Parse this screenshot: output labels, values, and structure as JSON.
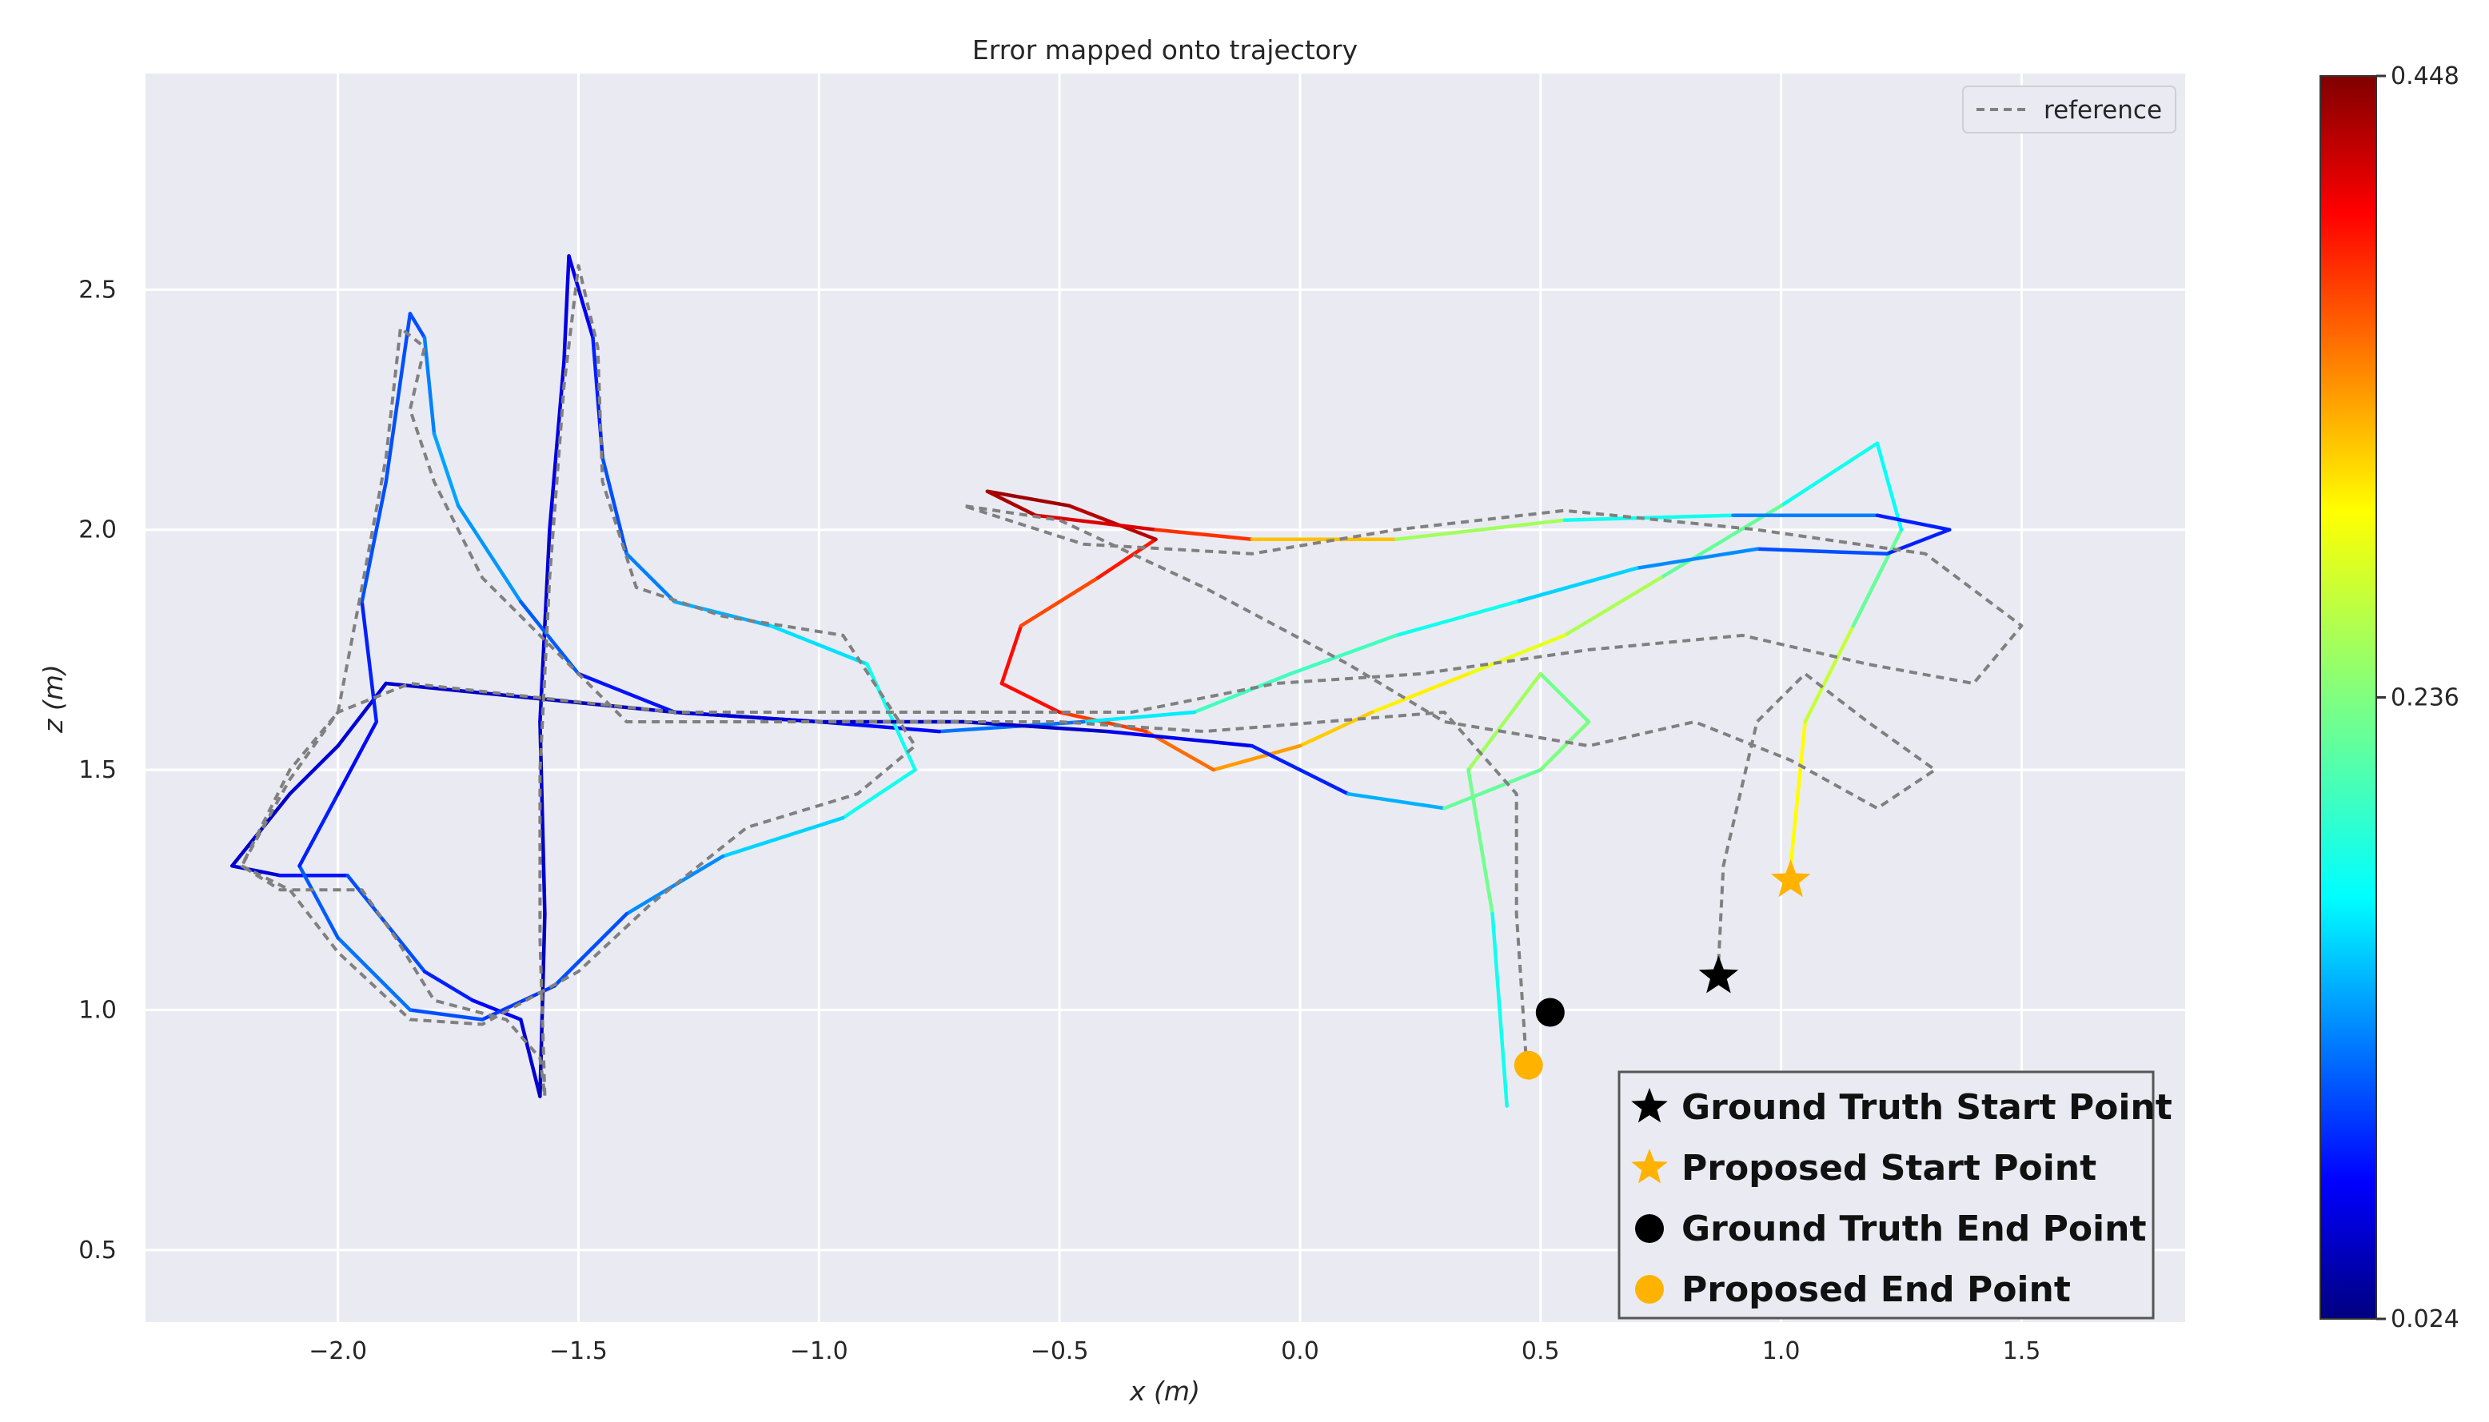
{
  "chart_data": {
    "type": "line",
    "title": "Error mapped onto trajectory",
    "xlabel": "x (m)",
    "ylabel": "z (m)",
    "xlim": [
      -2.4,
      1.84
    ],
    "ylim": [
      0.35,
      2.95
    ],
    "xticks": [
      -2.0,
      -1.5,
      -1.0,
      -0.5,
      0.0,
      0.5,
      1.0,
      1.5
    ],
    "xtick_labels": [
      "−2.0",
      "−1.5",
      "−1.0",
      "−0.5",
      "0.0",
      "0.5",
      "1.0",
      "1.5"
    ],
    "yticks": [
      0.5,
      1.0,
      1.5,
      2.0,
      2.5
    ],
    "ytick_labels": [
      "0.5",
      "1.0",
      "1.5",
      "2.0",
      "2.5"
    ],
    "grid": true,
    "colorbar": {
      "colormap": "jet",
      "min": 0.024,
      "max": 0.448,
      "ticks": [
        0.024,
        0.236,
        0.448
      ],
      "tick_labels": [
        "0.024",
        "0.236",
        "0.448"
      ]
    },
    "legend_reference": {
      "label": "reference",
      "placement": "top-right",
      "style": "dashed",
      "color": "#808080"
    },
    "legend_points": {
      "placement": "bottom-right",
      "entries": [
        {
          "label": "Ground Truth Start Point",
          "marker": "star",
          "color": "#000000"
        },
        {
          "label": "Proposed Start Point",
          "marker": "star",
          "color": "#FFB300"
        },
        {
          "label": "Ground Truth End Point",
          "marker": "circle",
          "color": "#000000"
        },
        {
          "label": "Proposed End Point",
          "marker": "circle",
          "color": "#FFB300"
        }
      ]
    },
    "markers": [
      {
        "name": "gt-start-marker",
        "shape": "star",
        "x": 0.87,
        "y": 1.07,
        "color": "#000000"
      },
      {
        "name": "proposed-start-marker",
        "shape": "star",
        "x": 1.02,
        "y": 1.27,
        "color": "#FFB300"
      },
      {
        "name": "gt-end-marker",
        "shape": "circle",
        "x": 0.52,
        "y": 0.995,
        "color": "#000000"
      },
      {
        "name": "proposed-end-marker",
        "shape": "circle",
        "x": 0.475,
        "y": 0.885,
        "color": "#FFB300"
      }
    ],
    "series": [
      {
        "name": "reference",
        "style": "dashed",
        "color": "#808080",
        "points": [
          [
            0.87,
            1.1
          ],
          [
            0.88,
            1.3
          ],
          [
            0.95,
            1.6
          ],
          [
            1.05,
            1.7
          ],
          [
            1.18,
            1.6
          ],
          [
            1.32,
            1.5
          ],
          [
            1.2,
            1.42
          ],
          [
            1.02,
            1.52
          ],
          [
            0.82,
            1.6
          ],
          [
            0.6,
            1.55
          ],
          [
            0.3,
            1.6
          ],
          [
            0.1,
            1.72
          ],
          [
            -0.2,
            1.88
          ],
          [
            -0.5,
            2.02
          ],
          [
            -0.7,
            2.05
          ],
          [
            -0.45,
            1.97
          ],
          [
            -0.1,
            1.95
          ],
          [
            0.2,
            2.0
          ],
          [
            0.55,
            2.04
          ],
          [
            0.95,
            2.0
          ],
          [
            1.3,
            1.95
          ],
          [
            1.5,
            1.8
          ],
          [
            1.4,
            1.68
          ],
          [
            1.18,
            1.72
          ],
          [
            0.92,
            1.78
          ],
          [
            0.6,
            1.75
          ],
          [
            0.25,
            1.7
          ],
          [
            -0.05,
            1.68
          ],
          [
            -0.35,
            1.62
          ],
          [
            -0.7,
            1.62
          ],
          [
            -1.0,
            1.62
          ],
          [
            -1.3,
            1.62
          ],
          [
            -1.58,
            1.65
          ],
          [
            -1.85,
            1.68
          ],
          [
            -2.0,
            1.62
          ],
          [
            -2.1,
            1.48
          ],
          [
            -2.2,
            1.3
          ],
          [
            -2.12,
            1.25
          ],
          [
            -1.95,
            1.25
          ],
          [
            -1.88,
            1.15
          ],
          [
            -1.8,
            1.02
          ],
          [
            -1.65,
            0.98
          ],
          [
            -1.58,
            0.9
          ],
          [
            -1.57,
            0.82
          ],
          [
            -1.58,
            1.15
          ],
          [
            -1.58,
            1.5
          ],
          [
            -1.56,
            1.9
          ],
          [
            -1.53,
            2.3
          ],
          [
            -1.5,
            2.55
          ],
          [
            -1.46,
            2.38
          ],
          [
            -1.45,
            2.1
          ],
          [
            -1.38,
            1.88
          ],
          [
            -1.2,
            1.82
          ],
          [
            -0.95,
            1.78
          ],
          [
            -0.8,
            1.55
          ],
          [
            -0.92,
            1.45
          ],
          [
            -1.15,
            1.38
          ],
          [
            -1.35,
            1.22
          ],
          [
            -1.5,
            1.08
          ],
          [
            -1.7,
            0.97
          ],
          [
            -1.85,
            0.98
          ],
          [
            -2.0,
            1.12
          ],
          [
            -2.1,
            1.25
          ],
          [
            -2.2,
            1.3
          ],
          [
            -2.1,
            1.5
          ],
          [
            -2.0,
            1.62
          ],
          [
            -1.95,
            1.88
          ],
          [
            -1.9,
            2.15
          ],
          [
            -1.87,
            2.42
          ],
          [
            -1.82,
            2.38
          ],
          [
            -1.85,
            2.25
          ],
          [
            -1.8,
            2.1
          ],
          [
            -1.7,
            1.9
          ],
          [
            -1.55,
            1.75
          ],
          [
            -1.4,
            1.6
          ],
          [
            -1.1,
            1.6
          ],
          [
            -0.8,
            1.6
          ],
          [
            -0.5,
            1.6
          ],
          [
            -0.2,
            1.58
          ],
          [
            0.05,
            1.6
          ],
          [
            0.3,
            1.62
          ],
          [
            0.45,
            1.45
          ],
          [
            0.45,
            1.2
          ],
          [
            0.47,
            0.9
          ]
        ]
      },
      {
        "name": "estimated",
        "style": "solid",
        "colormap": "jet",
        "points": [
          [
            1.02,
            1.3
          ],
          [
            1.05,
            1.6
          ],
          [
            1.15,
            1.8
          ],
          [
            1.25,
            2.0
          ],
          [
            1.2,
            2.18
          ],
          [
            1.0,
            2.05
          ],
          [
            0.75,
            1.9
          ],
          [
            0.55,
            1.78
          ],
          [
            0.35,
            1.7
          ],
          [
            0.15,
            1.62
          ],
          [
            0.0,
            1.55
          ],
          [
            -0.18,
            1.5
          ],
          [
            -0.32,
            1.58
          ],
          [
            -0.5,
            1.62
          ],
          [
            -0.62,
            1.68
          ],
          [
            -0.58,
            1.8
          ],
          [
            -0.42,
            1.9
          ],
          [
            -0.3,
            1.98
          ],
          [
            -0.48,
            2.05
          ],
          [
            -0.65,
            2.08
          ],
          [
            -0.55,
            2.03
          ],
          [
            -0.3,
            2.0
          ],
          [
            -0.1,
            1.98
          ],
          [
            0.2,
            1.98
          ],
          [
            0.55,
            2.02
          ],
          [
            0.9,
            2.03
          ],
          [
            1.2,
            2.03
          ],
          [
            1.35,
            2.0
          ],
          [
            1.22,
            1.95
          ],
          [
            0.95,
            1.96
          ],
          [
            0.7,
            1.92
          ],
          [
            0.45,
            1.85
          ],
          [
            0.2,
            1.78
          ],
          [
            -0.02,
            1.7
          ],
          [
            -0.22,
            1.62
          ],
          [
            -0.45,
            1.6
          ],
          [
            -0.75,
            1.58
          ],
          [
            -1.0,
            1.6
          ],
          [
            -1.3,
            1.62
          ],
          [
            -1.6,
            1.65
          ],
          [
            -1.9,
            1.68
          ],
          [
            -2.0,
            1.55
          ],
          [
            -2.1,
            1.45
          ],
          [
            -2.22,
            1.3
          ],
          [
            -2.12,
            1.28
          ],
          [
            -1.98,
            1.28
          ],
          [
            -1.9,
            1.18
          ],
          [
            -1.82,
            1.08
          ],
          [
            -1.72,
            1.02
          ],
          [
            -1.62,
            0.98
          ],
          [
            -1.58,
            0.82
          ],
          [
            -1.57,
            1.2
          ],
          [
            -1.58,
            1.6
          ],
          [
            -1.56,
            2.0
          ],
          [
            -1.53,
            2.35
          ],
          [
            -1.52,
            2.57
          ],
          [
            -1.47,
            2.4
          ],
          [
            -1.45,
            2.15
          ],
          [
            -1.4,
            1.95
          ],
          [
            -1.3,
            1.85
          ],
          [
            -1.1,
            1.8
          ],
          [
            -0.9,
            1.72
          ],
          [
            -0.8,
            1.5
          ],
          [
            -0.95,
            1.4
          ],
          [
            -1.2,
            1.32
          ],
          [
            -1.4,
            1.2
          ],
          [
            -1.55,
            1.05
          ],
          [
            -1.7,
            0.98
          ],
          [
            -1.85,
            1.0
          ],
          [
            -2.0,
            1.15
          ],
          [
            -2.08,
            1.3
          ],
          [
            -2.0,
            1.45
          ],
          [
            -1.92,
            1.6
          ],
          [
            -1.95,
            1.85
          ],
          [
            -1.9,
            2.1
          ],
          [
            -1.85,
            2.45
          ],
          [
            -1.82,
            2.4
          ],
          [
            -1.8,
            2.2
          ],
          [
            -1.75,
            2.05
          ],
          [
            -1.62,
            1.85
          ],
          [
            -1.5,
            1.7
          ],
          [
            -1.3,
            1.62
          ],
          [
            -1.0,
            1.6
          ],
          [
            -0.7,
            1.6
          ],
          [
            -0.4,
            1.58
          ],
          [
            -0.1,
            1.55
          ],
          [
            0.1,
            1.45
          ],
          [
            0.3,
            1.42
          ],
          [
            0.5,
            1.5
          ],
          [
            0.6,
            1.6
          ],
          [
            0.5,
            1.7
          ],
          [
            0.35,
            1.5
          ],
          [
            0.4,
            1.2
          ],
          [
            0.43,
            0.8
          ]
        ],
        "errors": [
          0.3,
          0.28,
          0.25,
          0.2,
          0.17,
          0.21,
          0.24,
          0.27,
          0.29,
          0.3,
          0.32,
          0.34,
          0.36,
          0.38,
          0.4,
          0.38,
          0.35,
          0.42,
          0.43,
          0.44,
          0.42,
          0.4,
          0.35,
          0.28,
          0.22,
          0.16,
          0.1,
          0.08,
          0.1,
          0.12,
          0.15,
          0.18,
          0.2,
          0.22,
          0.2,
          0.15,
          0.1,
          0.06,
          0.05,
          0.05,
          0.06,
          0.06,
          0.06,
          0.05,
          0.07,
          0.1,
          0.12,
          0.1,
          0.08,
          0.07,
          0.05,
          0.05,
          0.06,
          0.06,
          0.07,
          0.06,
          0.08,
          0.1,
          0.12,
          0.14,
          0.16,
          0.18,
          0.2,
          0.18,
          0.15,
          0.12,
          0.1,
          0.1,
          0.12,
          0.13,
          0.1,
          0.08,
          0.08,
          0.1,
          0.12,
          0.1,
          0.12,
          0.14,
          0.15,
          0.13,
          0.1,
          0.07,
          0.05,
          0.05,
          0.06,
          0.08,
          0.1,
          0.2,
          0.25,
          0.22,
          0.24,
          0.26,
          0.2,
          0.18
        ]
      }
    ]
  }
}
